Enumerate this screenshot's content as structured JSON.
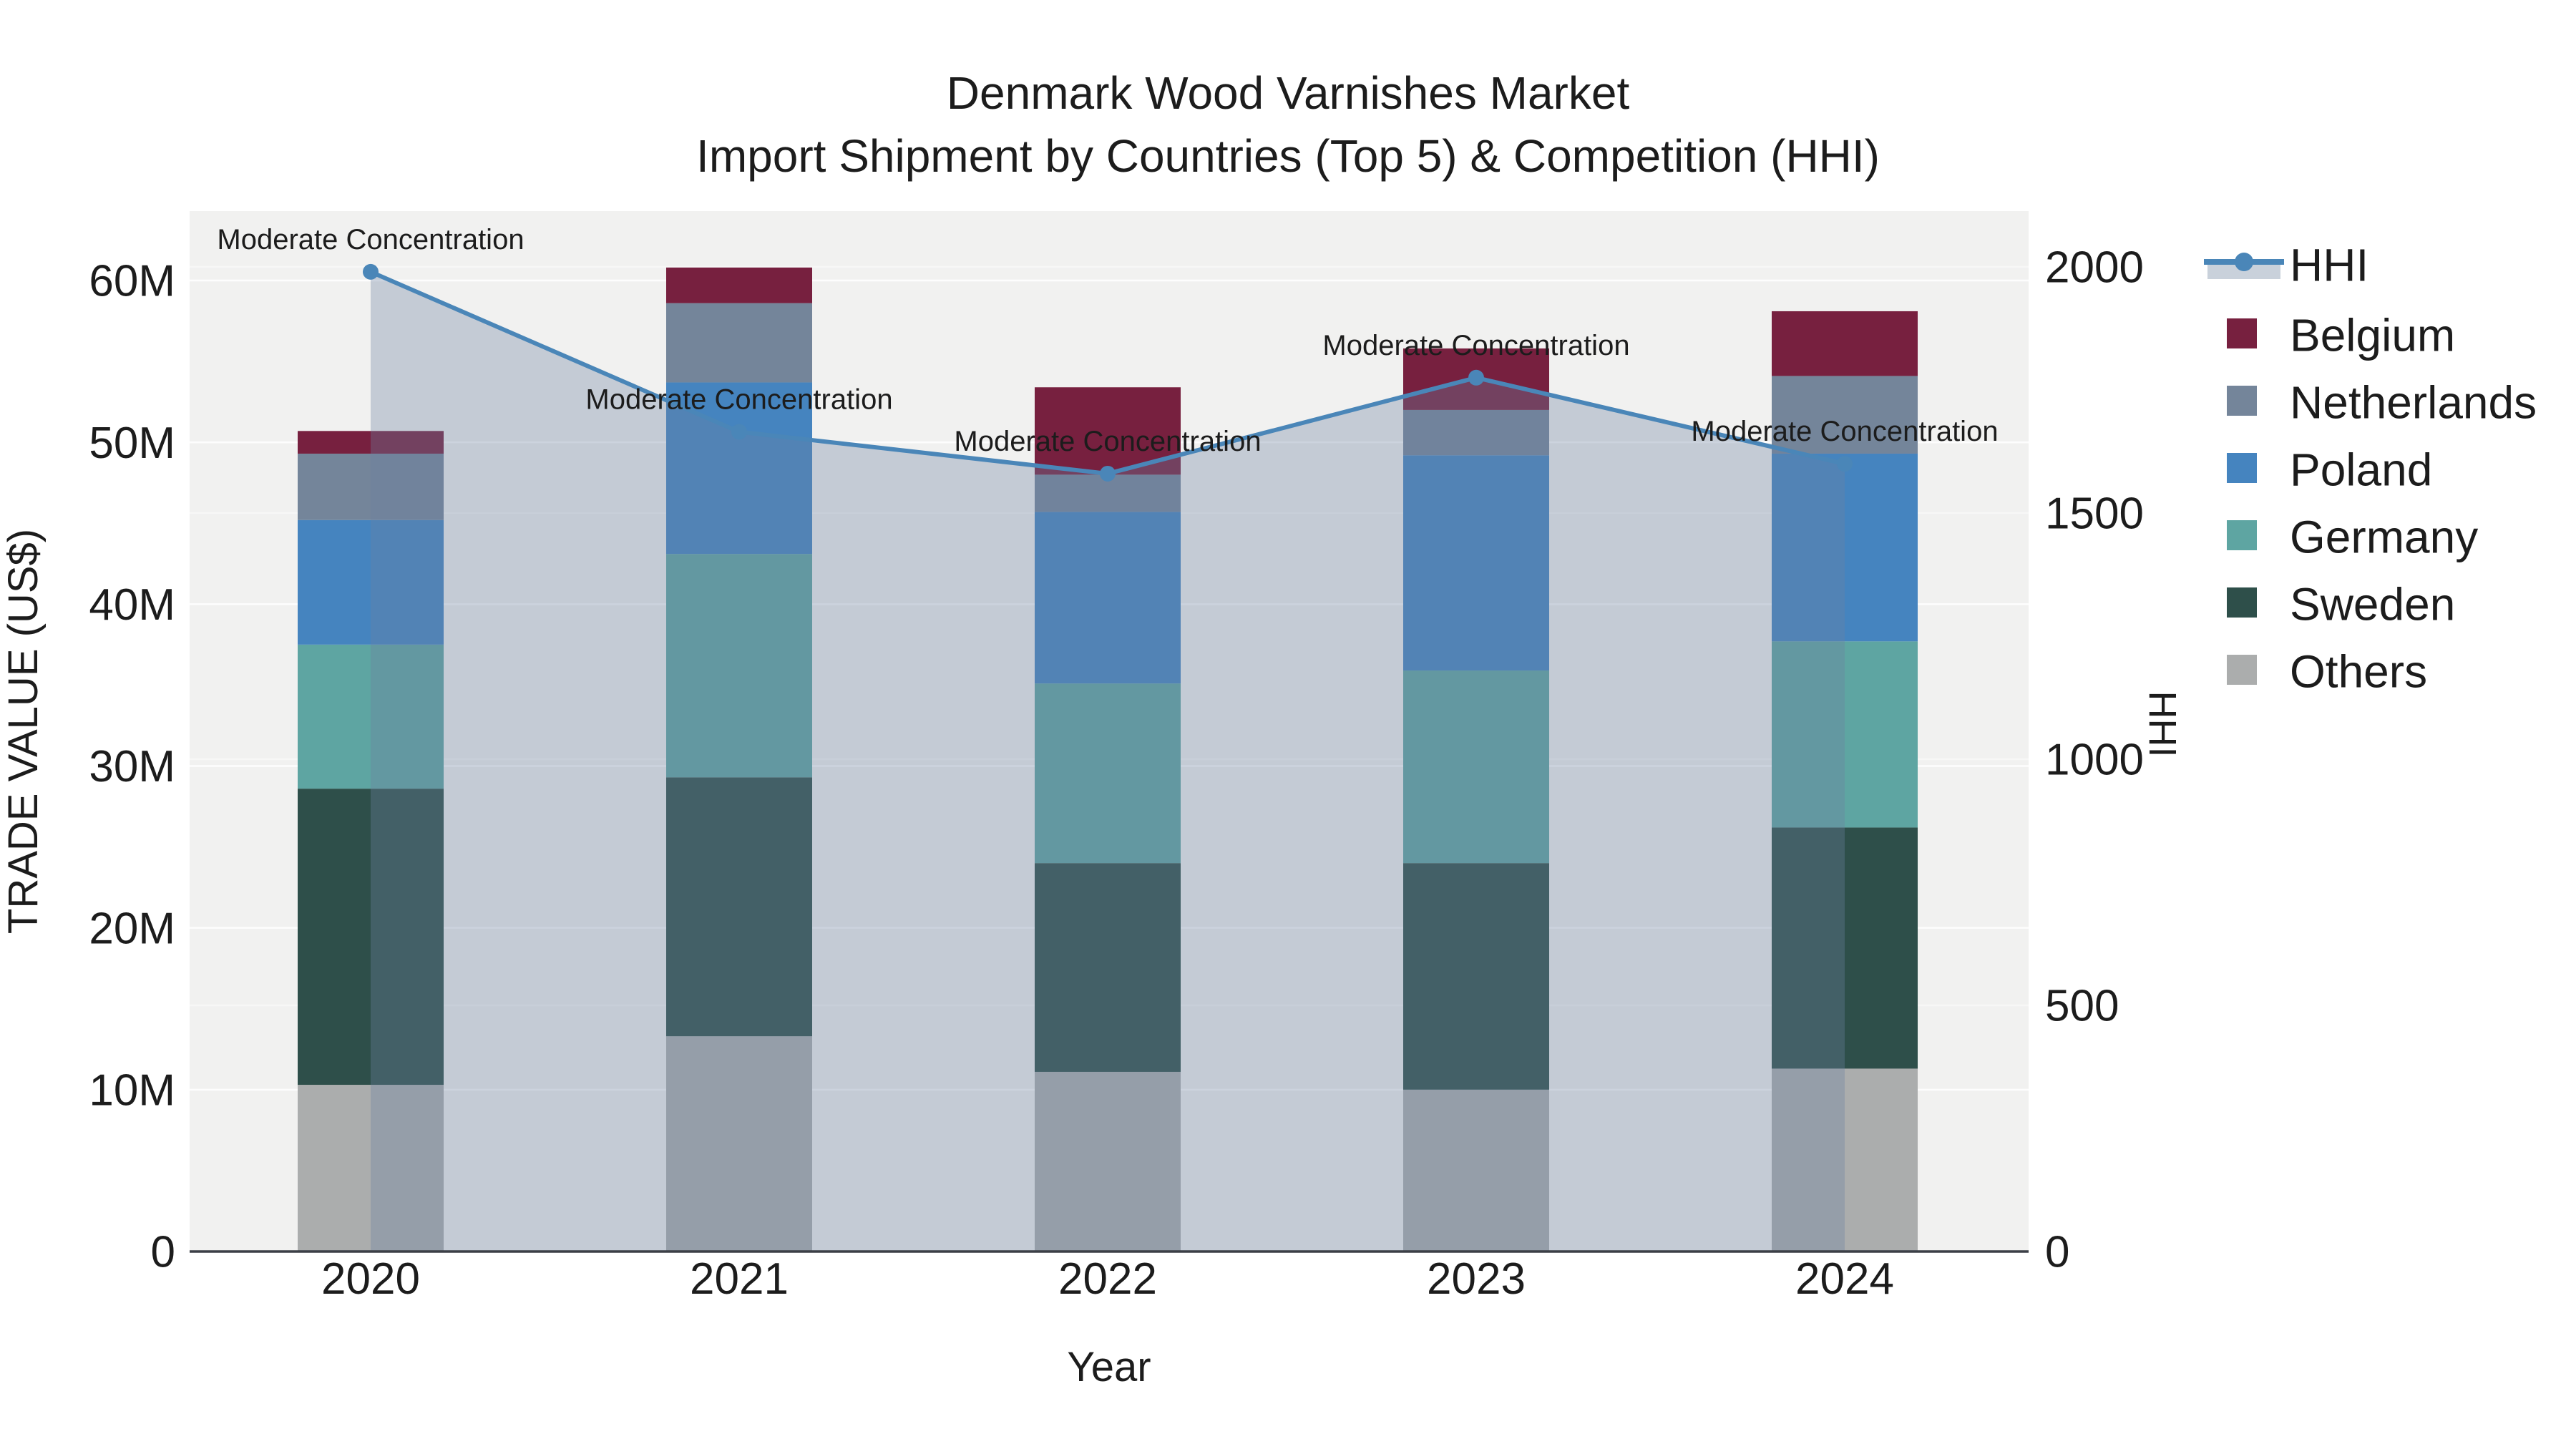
{
  "title": {
    "line1": "Denmark Wood Varnishes Market",
    "line2": "Import Shipment by Countries (Top 5) & Competition (HHI)"
  },
  "colors": {
    "plot_bg": "#f1f1f0",
    "grid": "#ffffff",
    "zero_line": "#3b3f46",
    "hhi_line": "#4a86b8",
    "hhi_fill": "rgba(108,130,160,0.34)",
    "legend_fill_band": "#c9d1db",
    "text": "#1c1c1c"
  },
  "chart_data": {
    "type": "bar",
    "stacked": true,
    "title": "Denmark Wood Varnishes Market — Import Shipment by Countries (Top 5) & Competition (HHI)",
    "categories": [
      "2020",
      "2021",
      "2022",
      "2023",
      "2024"
    ],
    "series": [
      {
        "name": "Others",
        "color": "#abadad",
        "values": [
          10.3,
          13.3,
          11.1,
          10.0,
          11.3
        ]
      },
      {
        "name": "Sweden",
        "color": "#2e4f4a",
        "values": [
          18.3,
          16.0,
          12.9,
          14.0,
          14.9
        ]
      },
      {
        "name": "Germany",
        "color": "#5ea5a2",
        "values": [
          8.9,
          13.8,
          11.1,
          11.9,
          11.5
        ]
      },
      {
        "name": "Poland",
        "color": "#4584bf",
        "values": [
          7.7,
          10.6,
          10.6,
          13.3,
          11.6
        ]
      },
      {
        "name": "Netherlands",
        "color": "#74859a",
        "values": [
          4.1,
          4.9,
          2.3,
          2.8,
          4.8
        ]
      },
      {
        "name": "Belgium",
        "color": "#77203f",
        "values": [
          1.4,
          2.2,
          5.4,
          3.8,
          4.0
        ]
      }
    ],
    "bar_totals_millions": [
      50.7,
      60.8,
      53.4,
      55.8,
      58.1
    ],
    "line_series": {
      "name": "HHI",
      "color": "#4a86b8",
      "axis": "right",
      "values": [
        1990,
        1665,
        1580,
        1775,
        1600
      ]
    },
    "annotations": [
      {
        "year": "2020",
        "text": "Moderate Concentration"
      },
      {
        "year": "2021",
        "text": "Moderate Concentration"
      },
      {
        "year": "2022",
        "text": "Moderate Concentration"
      },
      {
        "year": "2023",
        "text": "Moderate Concentration"
      },
      {
        "year": "2024",
        "text": "Moderate Concentration"
      }
    ],
    "xlabel": "Year",
    "ylabel": "TRADE VALUE (US$)",
    "ylabel_right": "HHI",
    "y_left": {
      "tick_labels": [
        "0",
        "10M",
        "20M",
        "30M",
        "40M",
        "50M",
        "60M"
      ],
      "tick_values": [
        0,
        10,
        20,
        30,
        40,
        50,
        60
      ],
      "ylim": [
        0,
        64.3
      ],
      "unit": "millions USD"
    },
    "y_right": {
      "tick_labels": [
        "0",
        "500",
        "1000",
        "1500",
        "2000"
      ],
      "tick_values": [
        0,
        500,
        1000,
        1500,
        2000
      ],
      "ylim": [
        0,
        2113
      ]
    },
    "grid": true,
    "legend_position": "right",
    "legend_order": [
      "HHI",
      "Belgium",
      "Netherlands",
      "Poland",
      "Germany",
      "Sweden",
      "Others"
    ]
  }
}
